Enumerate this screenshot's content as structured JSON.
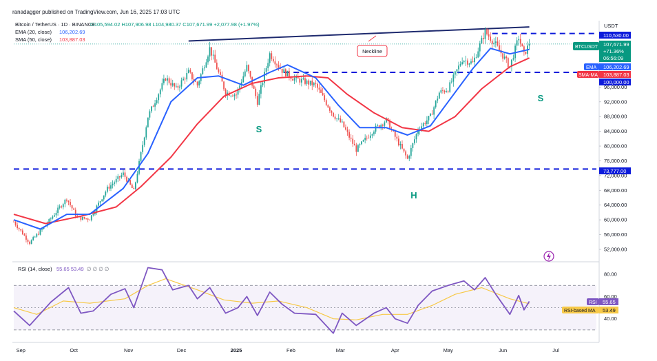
{
  "header": {
    "published": "ranadagger published on TradingView.com, Jun 16, 2025 17:03 UTC",
    "symbol_line": "Bitcoin / TetherUS · 1D · BINANCE",
    "ohlc": "O105,594.02 H107,906.98 L104,980.37 C107,671.99 +2,077.98 (+1.97%)",
    "ema_legend_label": "EMA (20, close)",
    "ema_legend_value": "106,202.69",
    "sma_legend_label": "SMA (50, close)",
    "sma_legend_value": "103,887.03",
    "rsi_legend_label": "RSI (14, close)",
    "rsi_legend_values": "55.65 53.49",
    "rsi_legend_extra": "∅ ∅ ∅ ∅"
  },
  "annotations": {
    "neckline": "Neckline",
    "left_shoulder": "S",
    "head": "H",
    "right_shoulder": "S"
  },
  "price_scale": {
    "currency": "USDT",
    "ticks": [
      "52,000.00",
      "56,000.00",
      "60,000.00",
      "64,000.00",
      "68,000.00",
      "72,000.00",
      "76,000.00",
      "80,000.00",
      "84,000.00",
      "88,000.00",
      "92,000.00",
      "96,000.00"
    ],
    "label_110530": "110,530.00",
    "label_100000": "100,000.00",
    "label_73777": "73,777.00",
    "price_tag_symbol": "BTCUSDT",
    "price_tag_value": "107,671.99",
    "price_tag_change": "+71.36%",
    "price_tag_timer": "06:56:09",
    "ema_tag_name": "EMA",
    "ema_tag_value": "106,202.69",
    "sma_tag_name": "SMA-MA",
    "sma_tag_value": "103,887.03"
  },
  "rsi_scale": {
    "ticks": [
      "80.00",
      "60.00",
      "40.00"
    ],
    "rsi_tag_name": "RSI",
    "rsi_tag_value": "55.65",
    "ma_tag_name": "RSI-based MA",
    "ma_tag_value": "53.49"
  },
  "time_axis": [
    "Sep",
    "Oct",
    "Nov",
    "Dec",
    "2025",
    "Feb",
    "Mar",
    "Apr",
    "May",
    "Jun",
    "Jul"
  ],
  "colors": {
    "up": "#26a69a",
    "down": "#ef5350",
    "ema": "#2962ff",
    "sma": "#f23645",
    "neckline": "#1e2a6e",
    "dashed": "#0d1bdb",
    "rsi": "#7e57c2",
    "rsi_ma": "#f7c948",
    "annotation_text": "#089981"
  },
  "chart_data": {
    "type": "candlestick",
    "symbol": "BTCUSDT",
    "timeframe": "1D",
    "ylim": [
      49000,
      114000
    ],
    "xlim": [
      "2024-08-28",
      "2025-07-24"
    ],
    "last_close": 107671.99,
    "horizontal_levels": [
      110530,
      100000,
      73777
    ],
    "trendline_neckline": [
      {
        "date": "2024-12-05",
        "price": 108500
      },
      {
        "date": "2025-06-16",
        "price": 112300
      }
    ],
    "price_path": [
      [
        "2024-08-28",
        59500
      ],
      [
        "2024-09-06",
        53800
      ],
      [
        "2024-09-15",
        58500
      ],
      [
        "2024-09-27",
        65800
      ],
      [
        "2024-10-03",
        60500
      ],
      [
        "2024-10-10",
        60300
      ],
      [
        "2024-10-20",
        68500
      ],
      [
        "2024-10-29",
        72500
      ],
      [
        "2024-11-04",
        67800
      ],
      [
        "2024-11-12",
        88000
      ],
      [
        "2024-11-22",
        98500
      ],
      [
        "2024-11-28",
        95500
      ],
      [
        "2024-12-05",
        100000
      ],
      [
        "2024-12-10",
        96500
      ],
      [
        "2024-12-17",
        106500
      ],
      [
        "2024-12-26",
        94500
      ],
      [
        "2025-01-01",
        94000
      ],
      [
        "2025-01-07",
        101500
      ],
      [
        "2025-01-13",
        92000
      ],
      [
        "2025-01-20",
        105000
      ],
      [
        "2025-01-27",
        100500
      ],
      [
        "2025-02-02",
        98500
      ],
      [
        "2025-02-15",
        96500
      ],
      [
        "2025-02-25",
        88500
      ],
      [
        "2025-03-02",
        86000
      ],
      [
        "2025-03-10",
        79000
      ],
      [
        "2025-03-20",
        84500
      ],
      [
        "2025-03-27",
        87000
      ],
      [
        "2025-04-01",
        82500
      ],
      [
        "2025-04-08",
        76500
      ],
      [
        "2025-04-14",
        84500
      ],
      [
        "2025-04-21",
        88000
      ],
      [
        "2025-04-26",
        94500
      ],
      [
        "2025-05-01",
        95500
      ],
      [
        "2025-05-09",
        103500
      ],
      [
        "2025-05-15",
        102500
      ],
      [
        "2025-05-22",
        111000
      ],
      [
        "2025-05-28",
        107500
      ],
      [
        "2025-06-05",
        101500
      ],
      [
        "2025-06-10",
        109500
      ],
      [
        "2025-06-13",
        104800
      ],
      [
        "2025-06-16",
        107672
      ]
    ],
    "ema20_path": [
      [
        "2024-08-28",
        60000
      ],
      [
        "2024-09-12",
        57500
      ],
      [
        "2024-09-27",
        61500
      ],
      [
        "2024-10-10",
        61500
      ],
      [
        "2024-10-29",
        68500
      ],
      [
        "2024-11-12",
        78000
      ],
      [
        "2024-11-25",
        92000
      ],
      [
        "2024-12-10",
        98500
      ],
      [
        "2024-12-22",
        99000
      ],
      [
        "2025-01-05",
        96500
      ],
      [
        "2025-01-20",
        100000
      ],
      [
        "2025-01-30",
        102000
      ],
      [
        "2025-02-15",
        98500
      ],
      [
        "2025-02-28",
        91000
      ],
      [
        "2025-03-12",
        85000
      ],
      [
        "2025-03-27",
        85000
      ],
      [
        "2025-04-08",
        83000
      ],
      [
        "2025-04-21",
        85500
      ],
      [
        "2025-05-01",
        92000
      ],
      [
        "2025-05-15",
        101000
      ],
      [
        "2025-05-25",
        106500
      ],
      [
        "2025-06-05",
        105000
      ],
      [
        "2025-06-16",
        106202.69
      ]
    ],
    "sma50_path": [
      [
        "2024-08-28",
        61500
      ],
      [
        "2024-09-15",
        59000
      ],
      [
        "2024-10-05",
        61000
      ],
      [
        "2024-10-25",
        63500
      ],
      [
        "2024-11-08",
        69000
      ],
      [
        "2024-11-25",
        77000
      ],
      [
        "2024-12-10",
        86000
      ],
      [
        "2024-12-25",
        93500
      ],
      [
        "2025-01-10",
        97000
      ],
      [
        "2025-01-25",
        98500
      ],
      [
        "2025-02-10",
        99000
      ],
      [
        "2025-02-22",
        98500
      ],
      [
        "2025-03-05",
        94000
      ],
      [
        "2025-03-20",
        89000
      ],
      [
        "2025-04-05",
        85000
      ],
      [
        "2025-04-20",
        84000
      ],
      [
        "2025-05-05",
        88000
      ],
      [
        "2025-05-20",
        95500
      ],
      [
        "2025-06-05",
        101500
      ],
      [
        "2025-06-16",
        103887.03
      ]
    ],
    "rsi": {
      "ylim": [
        20,
        90
      ],
      "levels": [
        70,
        50,
        30
      ],
      "last": 55.65,
      "ma_last": 53.49,
      "path": [
        [
          "2024-08-28",
          47
        ],
        [
          "2024-09-06",
          34
        ],
        [
          "2024-09-18",
          55
        ],
        [
          "2024-09-28",
          68
        ],
        [
          "2024-10-05",
          45
        ],
        [
          "2024-10-12",
          47
        ],
        [
          "2024-10-22",
          62
        ],
        [
          "2024-10-30",
          67
        ],
        [
          "2024-11-04",
          50
        ],
        [
          "2024-11-12",
          86
        ],
        [
          "2024-11-20",
          84
        ],
        [
          "2024-11-26",
          66
        ],
        [
          "2024-12-05",
          70
        ],
        [
          "2024-12-10",
          58
        ],
        [
          "2024-12-17",
          68
        ],
        [
          "2024-12-26",
          45
        ],
        [
          "2025-01-02",
          50
        ],
        [
          "2025-01-07",
          60
        ],
        [
          "2025-01-13",
          43
        ],
        [
          "2025-01-20",
          64
        ],
        [
          "2025-01-27",
          53
        ],
        [
          "2025-02-03",
          45
        ],
        [
          "2025-02-15",
          44
        ],
        [
          "2025-02-25",
          27
        ],
        [
          "2025-03-02",
          45
        ],
        [
          "2025-03-10",
          34
        ],
        [
          "2025-03-20",
          45
        ],
        [
          "2025-03-27",
          50
        ],
        [
          "2025-04-01",
          40
        ],
        [
          "2025-04-08",
          36
        ],
        [
          "2025-04-14",
          52
        ],
        [
          "2025-04-22",
          65
        ],
        [
          "2025-05-01",
          70
        ],
        [
          "2025-05-10",
          74
        ],
        [
          "2025-05-16",
          66
        ],
        [
          "2025-05-22",
          77
        ],
        [
          "2025-05-28",
          62
        ],
        [
          "2025-06-05",
          44
        ],
        [
          "2025-06-10",
          61
        ],
        [
          "2025-06-13",
          48
        ],
        [
          "2025-06-16",
          55.65
        ]
      ],
      "ma_path": [
        [
          "2024-08-28",
          50
        ],
        [
          "2024-09-10",
          44
        ],
        [
          "2024-09-25",
          56
        ],
        [
          "2024-10-10",
          54
        ],
        [
          "2024-10-30",
          58
        ],
        [
          "2024-11-12",
          70
        ],
        [
          "2024-11-22",
          76
        ],
        [
          "2024-12-10",
          66
        ],
        [
          "2024-12-25",
          57
        ],
        [
          "2025-01-10",
          54
        ],
        [
          "2025-01-25",
          56
        ],
        [
          "2025-02-10",
          50
        ],
        [
          "2025-02-25",
          40
        ],
        [
          "2025-03-10",
          39
        ],
        [
          "2025-03-25",
          44
        ],
        [
          "2025-04-08",
          44
        ],
        [
          "2025-04-22",
          52
        ],
        [
          "2025-05-05",
          62
        ],
        [
          "2025-05-20",
          68
        ],
        [
          "2025-06-05",
          58
        ],
        [
          "2025-06-16",
          53.49
        ]
      ]
    }
  }
}
